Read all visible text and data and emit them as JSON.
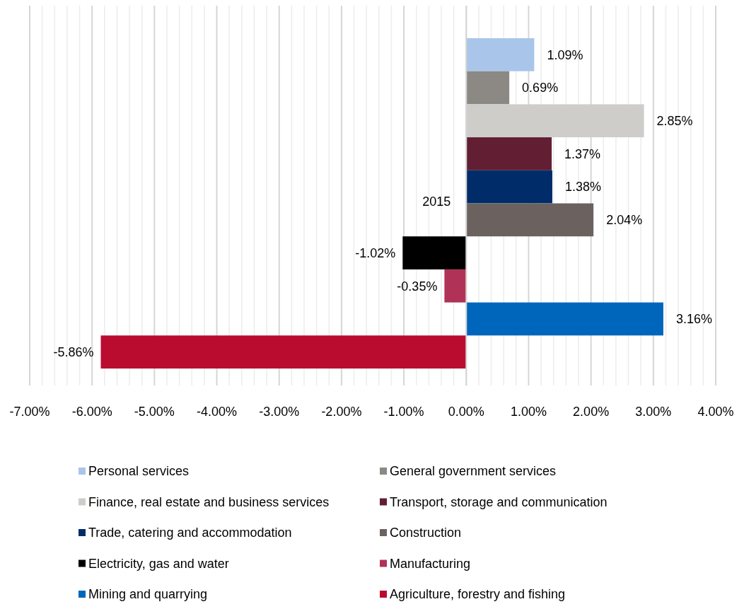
{
  "chart_data": {
    "type": "bar",
    "orientation": "horizontal",
    "categories": [
      "2015"
    ],
    "series": [
      {
        "name": "Personal services",
        "color": "#a9c6ea",
        "values": [
          1.09
        ],
        "value_labels": [
          "1.09%"
        ]
      },
      {
        "name": "General government services",
        "color": "#8c8884",
        "values": [
          0.69
        ],
        "value_labels": [
          "0.69%"
        ]
      },
      {
        "name": "Finance, real estate and business services",
        "color": "#cfcdca",
        "values": [
          2.85
        ],
        "value_labels": [
          "2.85%"
        ]
      },
      {
        "name": "Transport, storage and communication",
        "color": "#621e32",
        "values": [
          1.37
        ],
        "value_labels": [
          "1.37%"
        ]
      },
      {
        "name": "Trade, catering and accommodation",
        "color": "#002d69",
        "values": [
          1.38
        ],
        "value_labels": [
          "1.38%"
        ]
      },
      {
        "name": "Construction",
        "color": "#6b6260",
        "values": [
          2.04
        ],
        "value_labels": [
          "2.04%"
        ]
      },
      {
        "name": "Electricity, gas and water",
        "color": "#000000",
        "values": [
          -1.02
        ],
        "value_labels": [
          "-1.02%"
        ]
      },
      {
        "name": "Manufacturing",
        "color": "#b03257",
        "values": [
          -0.35
        ],
        "value_labels": [
          "-0.35%"
        ]
      },
      {
        "name": "Mining and quarrying",
        "color": "#0066bb",
        "values": [
          3.16
        ],
        "value_labels": [
          "3.16%"
        ]
      },
      {
        "name": "Agriculture, forestry and fishing",
        "color": "#ba0c2f",
        "values": [
          -5.86
        ],
        "value_labels": [
          "-5.86%"
        ]
      }
    ],
    "xlim": [
      -7,
      4
    ],
    "xticks": [
      {
        "value": -7,
        "label": "-7.00%"
      },
      {
        "value": -6,
        "label": "-6.00%"
      },
      {
        "value": -5,
        "label": "-5.00%"
      },
      {
        "value": -4,
        "label": "-4.00%"
      },
      {
        "value": -3,
        "label": "-3.00%"
      },
      {
        "value": -2,
        "label": "-2.00%"
      },
      {
        "value": -1,
        "label": "-1.00%"
      },
      {
        "value": 0,
        "label": "0.00%"
      },
      {
        "value": 1,
        "label": "1.00%"
      },
      {
        "value": 2,
        "label": "2.00%"
      },
      {
        "value": 3,
        "label": "3.00%"
      },
      {
        "value": 4,
        "label": "4.00%"
      }
    ],
    "grid": true,
    "legend": "bottom"
  }
}
